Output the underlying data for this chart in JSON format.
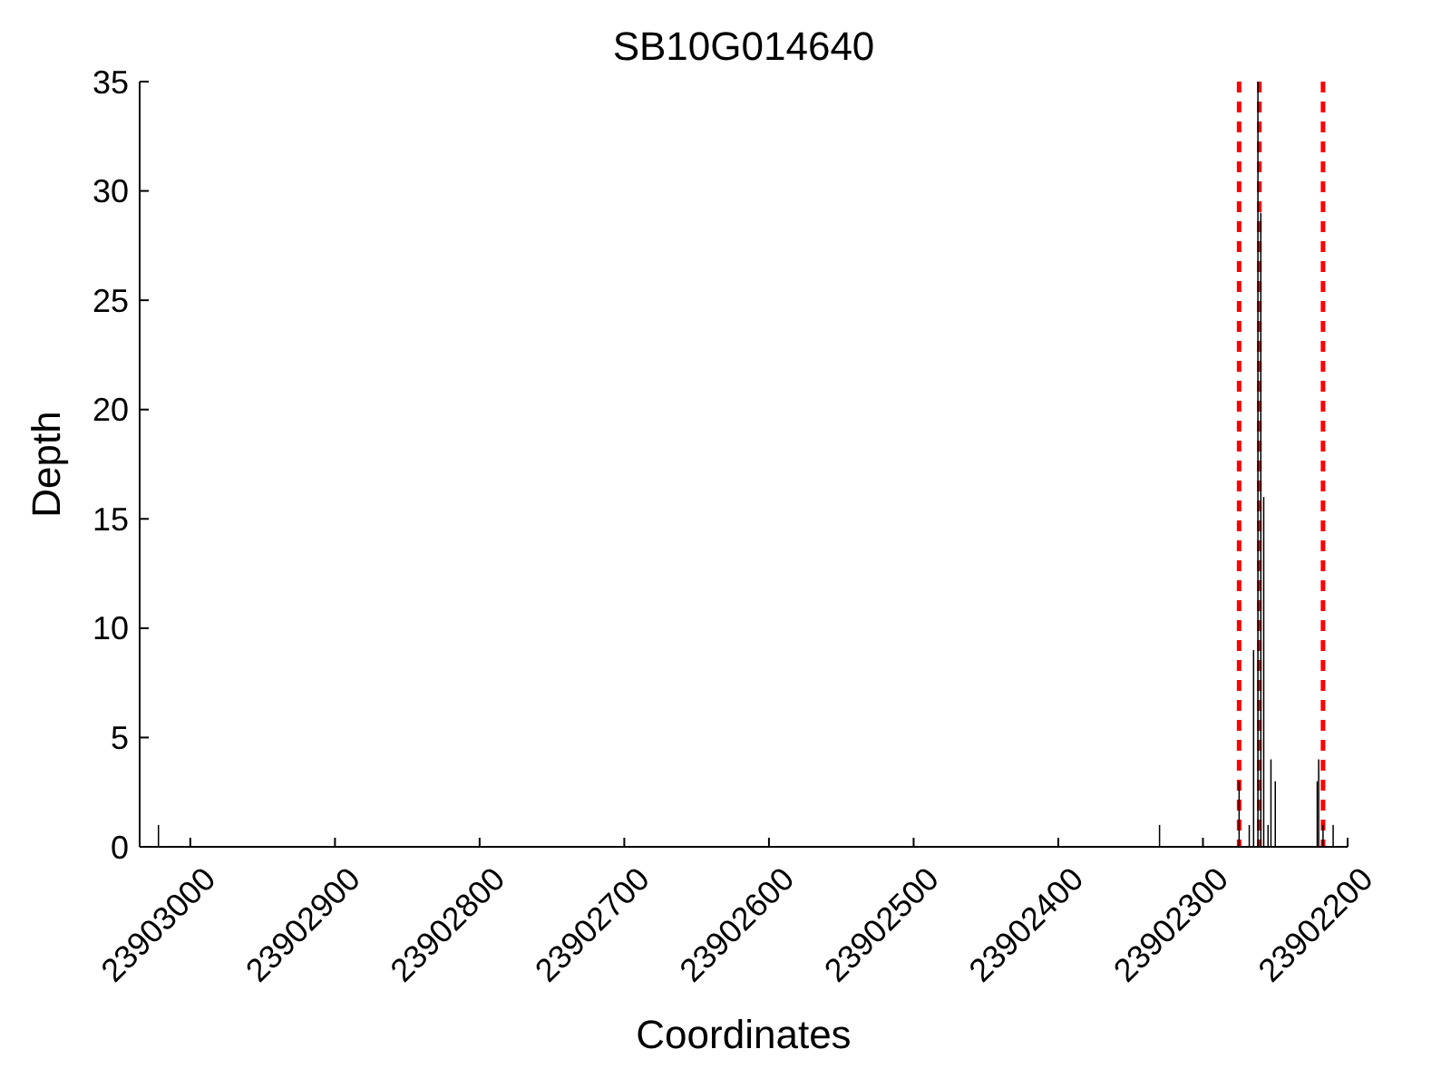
{
  "chart_data": {
    "type": "bar",
    "title": "SB10G014640",
    "xlabel": "Coordinates",
    "ylabel": "Depth",
    "x": [
      23903022,
      23902330,
      23902275,
      23902268,
      23902265,
      23902262,
      23902260,
      23902258,
      23902255,
      23902253,
      23902250,
      23902221,
      23902220,
      23902217,
      23902210
    ],
    "values": [
      1,
      1,
      3,
      1,
      9,
      35,
      29,
      16,
      1,
      4,
      3,
      3,
      4,
      1,
      1
    ],
    "color": "#000000",
    "xlim": [
      23903035,
      23902200
    ],
    "xticks": [
      23903000,
      23902900,
      23902800,
      23902700,
      23902600,
      23902500,
      23902400,
      23902300,
      23902200
    ],
    "ylim": [
      0,
      35
    ],
    "yticks": [
      0,
      5,
      10,
      15,
      20,
      25,
      30,
      35
    ],
    "grid": false,
    "ref_lines": [
      {
        "axis": "x",
        "value": 23902275,
        "color": "#ff0000",
        "line_style": "dashed"
      },
      {
        "axis": "x",
        "value": 23902261,
        "color": "#ff0000",
        "line_style": "dashed"
      },
      {
        "axis": "x",
        "value": 23902217,
        "color": "#ff0000",
        "line_style": "dashed"
      }
    ]
  }
}
